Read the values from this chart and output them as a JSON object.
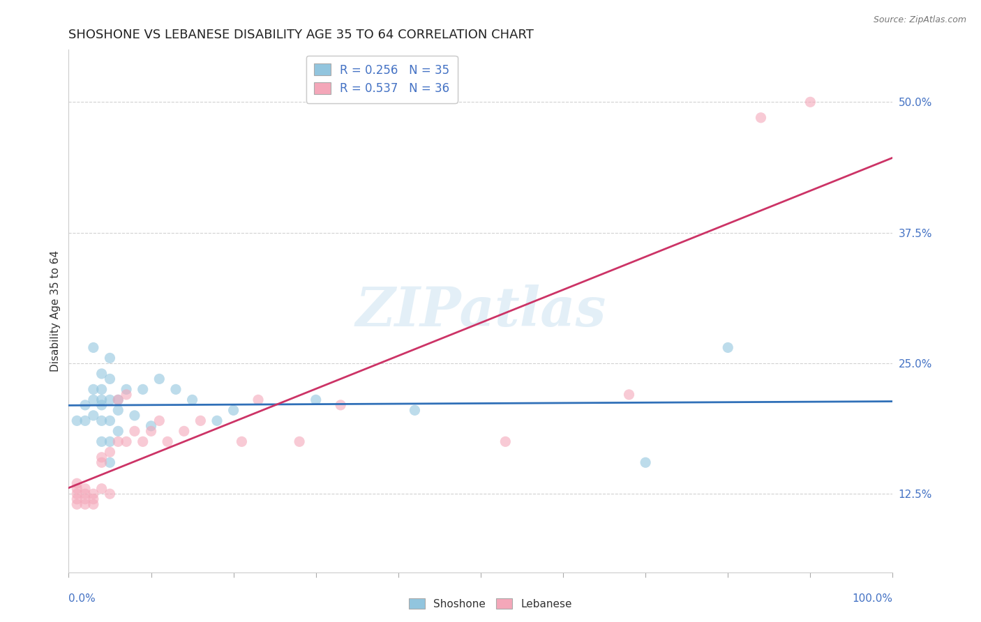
{
  "title": "SHOSHONE VS LEBANESE DISABILITY AGE 35 TO 64 CORRELATION CHART",
  "source": "Source: ZipAtlas.com",
  "ylabel": "Disability Age 35 to 64",
  "ytick_labels": [
    "12.5%",
    "25.0%",
    "37.5%",
    "50.0%"
  ],
  "ytick_values": [
    0.125,
    0.25,
    0.375,
    0.5
  ],
  "xlim": [
    0.0,
    1.0
  ],
  "ylim": [
    0.05,
    0.55
  ],
  "legend_entries": [
    {
      "label": "R = 0.256   N = 35",
      "color": "#92c5de"
    },
    {
      "label": "R = 0.537   N = 36",
      "color": "#f4a7b9"
    }
  ],
  "footer_labels": [
    "Shoshone",
    "Lebanese"
  ],
  "footer_colors": [
    "#92c5de",
    "#f4a7b9"
  ],
  "shoshone_x": [
    0.01,
    0.02,
    0.02,
    0.03,
    0.03,
    0.03,
    0.03,
    0.04,
    0.04,
    0.04,
    0.04,
    0.04,
    0.04,
    0.05,
    0.05,
    0.05,
    0.05,
    0.05,
    0.05,
    0.06,
    0.06,
    0.06,
    0.07,
    0.08,
    0.09,
    0.1,
    0.11,
    0.13,
    0.15,
    0.18,
    0.2,
    0.3,
    0.42,
    0.7,
    0.8
  ],
  "shoshone_y": [
    0.195,
    0.195,
    0.21,
    0.2,
    0.215,
    0.225,
    0.265,
    0.175,
    0.195,
    0.21,
    0.215,
    0.225,
    0.24,
    0.155,
    0.175,
    0.195,
    0.215,
    0.235,
    0.255,
    0.185,
    0.205,
    0.215,
    0.225,
    0.2,
    0.225,
    0.19,
    0.235,
    0.225,
    0.215,
    0.195,
    0.205,
    0.215,
    0.205,
    0.155,
    0.265
  ],
  "lebanese_x": [
    0.01,
    0.01,
    0.01,
    0.01,
    0.01,
    0.02,
    0.02,
    0.02,
    0.02,
    0.03,
    0.03,
    0.03,
    0.04,
    0.04,
    0.04,
    0.05,
    0.05,
    0.06,
    0.06,
    0.07,
    0.07,
    0.08,
    0.09,
    0.1,
    0.11,
    0.12,
    0.14,
    0.16,
    0.21,
    0.23,
    0.28,
    0.33,
    0.53,
    0.68,
    0.84,
    0.9
  ],
  "lebanese_y": [
    0.115,
    0.12,
    0.125,
    0.13,
    0.135,
    0.115,
    0.12,
    0.125,
    0.13,
    0.115,
    0.12,
    0.125,
    0.13,
    0.155,
    0.16,
    0.125,
    0.165,
    0.175,
    0.215,
    0.175,
    0.22,
    0.185,
    0.175,
    0.185,
    0.195,
    0.175,
    0.185,
    0.195,
    0.175,
    0.215,
    0.175,
    0.21,
    0.175,
    0.22,
    0.485,
    0.5
  ],
  "shoshone_color": "#92c5de",
  "lebanese_color": "#f4a7b9",
  "shoshone_line_color": "#3070b8",
  "lebanese_line_color": "#cc3366",
  "background_color": "#ffffff",
  "watermark": "ZIPatlas",
  "title_fontsize": 13,
  "axis_label_fontsize": 11,
  "tick_fontsize": 11
}
